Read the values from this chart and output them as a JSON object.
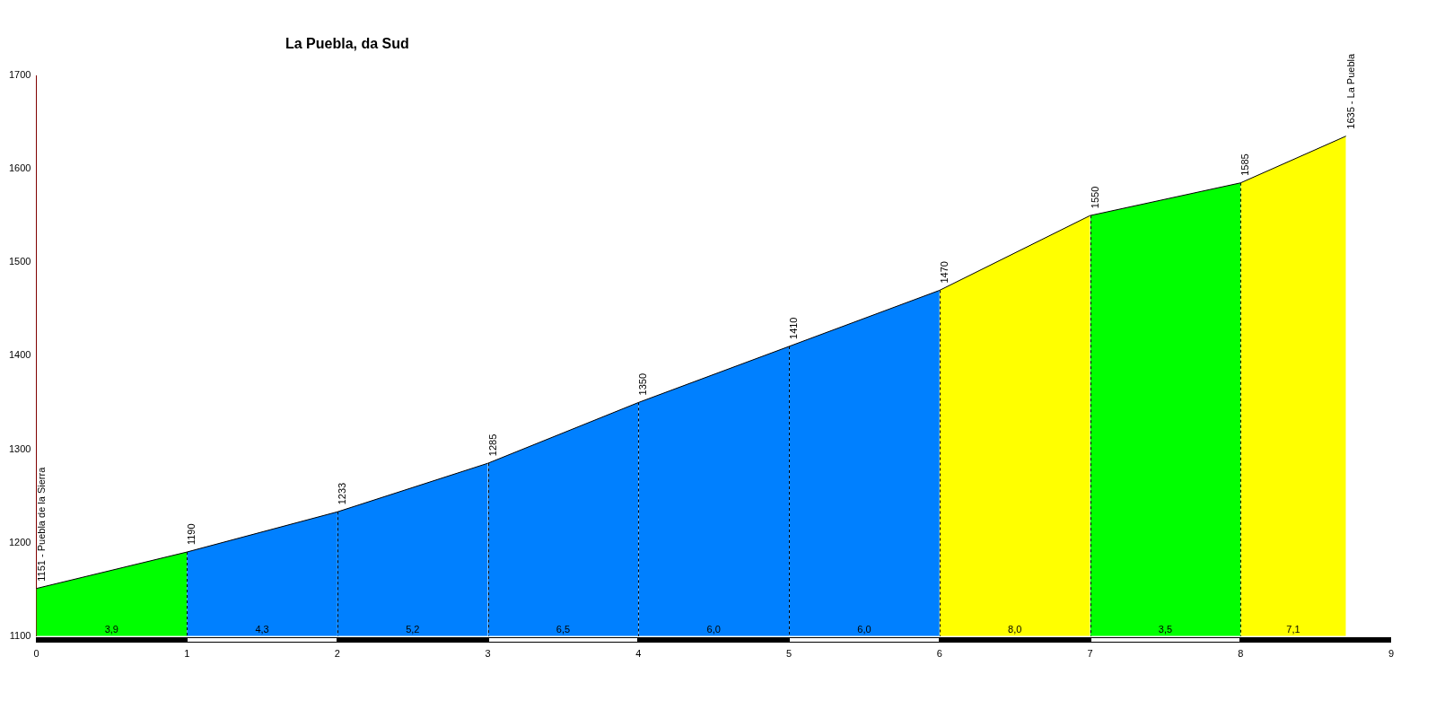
{
  "chart_data": {
    "type": "area",
    "title": "La Puebla, da Sud",
    "series": [
      {
        "color": "#00ff00",
        "x": [
          0,
          1
        ],
        "values": [
          1151,
          1190
        ],
        "value_labels": [
          "1151 - Puebla de la Sierra",
          null
        ]
      },
      {
        "color": "#0080ff",
        "x": [
          1,
          2
        ],
        "values": [
          1190,
          1233
        ],
        "value_labels": [
          "1190",
          null
        ]
      },
      {
        "color": "#0080ff",
        "x": [
          2,
          3
        ],
        "values": [
          1233,
          1285
        ],
        "value_labels": [
          "1233",
          null
        ]
      },
      {
        "color": "#0080ff",
        "x": [
          3,
          4
        ],
        "values": [
          1285,
          1350
        ],
        "value_labels": [
          "1285",
          null
        ]
      },
      {
        "color": "#0080ff",
        "x": [
          4,
          5
        ],
        "values": [
          1350,
          1410
        ],
        "value_labels": [
          "1350",
          null
        ]
      },
      {
        "color": "#0080ff",
        "x": [
          5,
          6
        ],
        "values": [
          1410,
          1470
        ],
        "value_labels": [
          "1410",
          null
        ]
      },
      {
        "color": "#ffff00",
        "x": [
          6,
          7
        ],
        "values": [
          1470,
          1550
        ],
        "value_labels": [
          "1470",
          null
        ]
      },
      {
        "color": "#00ff00",
        "x": [
          7,
          8
        ],
        "values": [
          1550,
          1585
        ],
        "value_labels": [
          "1550",
          null
        ]
      },
      {
        "color": "#ffff00",
        "x": [
          8,
          8.7
        ],
        "values": [
          1585,
          1635
        ],
        "value_labels": [
          "1585",
          "1635 - La Puebla"
        ]
      }
    ],
    "annotations": [
      {
        "text": "3,9",
        "x": 0.5,
        "y": 1100
      },
      {
        "text": "4,3",
        "x": 1.5,
        "y": 1100
      },
      {
        "text": "5,2",
        "x": 2.5,
        "y": 1100
      },
      {
        "text": "6,5",
        "x": 3.5,
        "y": 1100
      },
      {
        "text": "6,0",
        "x": 4.5,
        "y": 1100
      },
      {
        "text": "6,0",
        "x": 5.5,
        "y": 1100
      },
      {
        "text": "8,0",
        "x": 6.5,
        "y": 1100
      },
      {
        "text": "3,5",
        "x": 7.5,
        "y": 1100
      },
      {
        "text": "7,1",
        "x": 8.35,
        "y": 1100
      }
    ],
    "xlim": [
      0,
      9
    ],
    "xticks": [
      0,
      1,
      2,
      3,
      4,
      5,
      6,
      7,
      8,
      9
    ],
    "ylim": [
      1100,
      1700
    ],
    "yticks": [
      1100,
      1200,
      1300,
      1400,
      1500,
      1600,
      1700
    ],
    "grid": "x",
    "legend": false
  }
}
